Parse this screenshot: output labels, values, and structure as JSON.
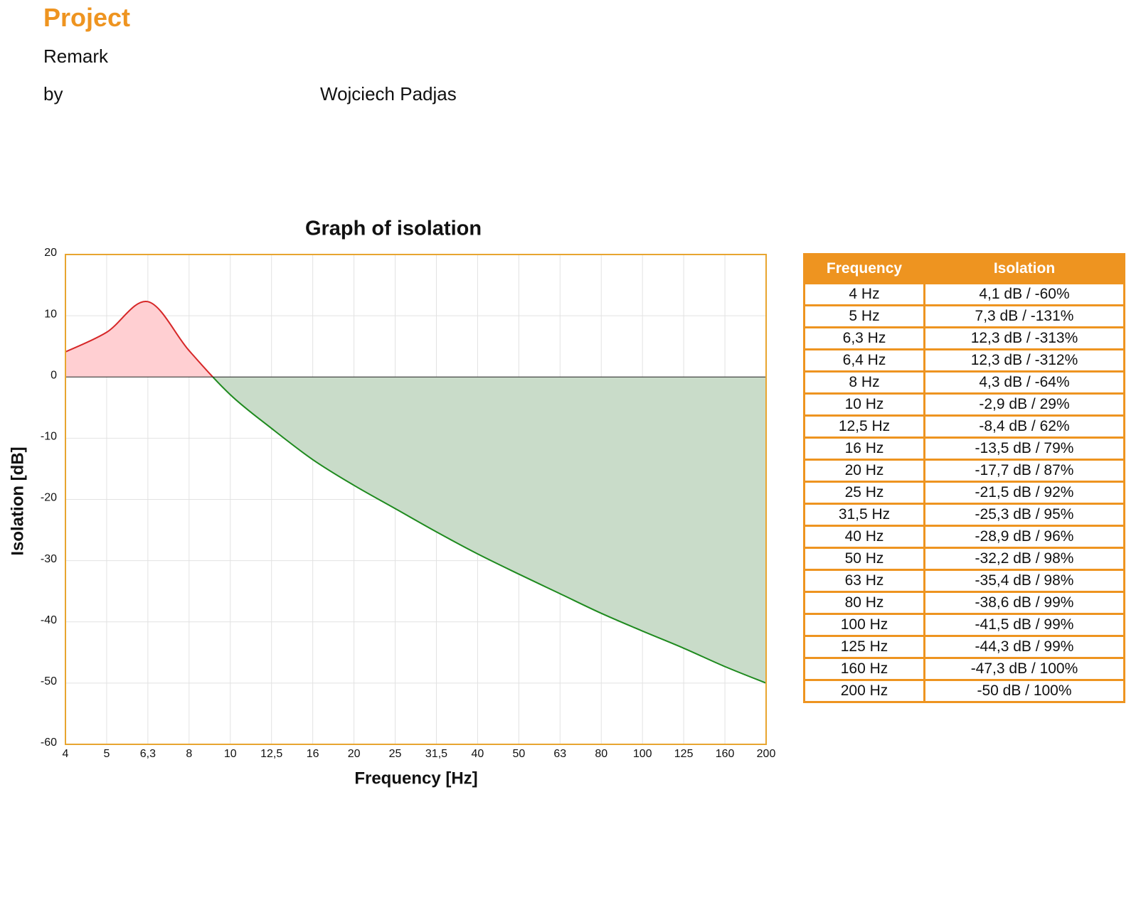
{
  "header": {
    "title": "Project",
    "remark": "Remark",
    "by_label": "by",
    "author": "Wojciech Padjas"
  },
  "chart_data": {
    "type": "area",
    "title": "Graph of isolation",
    "x_label": "Frequency [Hz]",
    "y_label": "Isolation [dB]",
    "categories": [
      "4",
      "5",
      "6,3",
      "8",
      "10",
      "12,5",
      "16",
      "20",
      "25",
      "31,5",
      "40",
      "50",
      "63",
      "80",
      "100",
      "125",
      "160",
      "200"
    ],
    "values": [
      4.1,
      7.3,
      12.3,
      4.3,
      -2.9,
      -8.4,
      -13.5,
      -17.7,
      -21.5,
      -25.3,
      -28.9,
      -32.2,
      -35.4,
      -38.6,
      -41.5,
      -44.3,
      -47.3,
      -50
    ],
    "ylim": [
      -60,
      20
    ],
    "yticks": [
      -60,
      -50,
      -40,
      -30,
      -20,
      -10,
      0,
      10,
      20
    ],
    "grid": true,
    "positive_color": "#d62728",
    "positive_fill": "#ffcfd2",
    "negative_color": "#1e8a1e",
    "negative_fill": "#c9dcc9",
    "frame_color": "#e8a530"
  },
  "table": {
    "columns": [
      "Frequency",
      "Isolation"
    ],
    "rows": [
      [
        "4 Hz",
        "4,1 dB / -60%"
      ],
      [
        "5 Hz",
        "7,3 dB / -131%"
      ],
      [
        "6,3 Hz",
        "12,3 dB / -313%"
      ],
      [
        "6,4 Hz",
        "12,3 dB / -312%"
      ],
      [
        "8 Hz",
        "4,3 dB / -64%"
      ],
      [
        "10 Hz",
        "-2,9 dB / 29%"
      ],
      [
        "12,5 Hz",
        "-8,4 dB / 62%"
      ],
      [
        "16 Hz",
        "-13,5 dB / 79%"
      ],
      [
        "20 Hz",
        "-17,7 dB / 87%"
      ],
      [
        "25 Hz",
        "-21,5 dB / 92%"
      ],
      [
        "31,5 Hz",
        "-25,3 dB / 95%"
      ],
      [
        "40 Hz",
        "-28,9 dB / 96%"
      ],
      [
        "50 Hz",
        "-32,2 dB / 98%"
      ],
      [
        "63 Hz",
        "-35,4 dB / 98%"
      ],
      [
        "80 Hz",
        "-38,6 dB / 99%"
      ],
      [
        "100 Hz",
        "-41,5 dB / 99%"
      ],
      [
        "125 Hz",
        "-44,3 dB / 99%"
      ],
      [
        "160 Hz",
        "-47,3 dB / 100%"
      ],
      [
        "200 Hz",
        "-50 dB / 100%"
      ]
    ]
  }
}
